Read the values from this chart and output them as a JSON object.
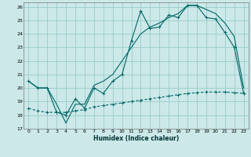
{
  "title": "",
  "xlabel": "Humidex (Indice chaleur)",
  "xlim": [
    -0.5,
    23.5
  ],
  "ylim": [
    17,
    26.3
  ],
  "yticks": [
    17,
    18,
    19,
    20,
    21,
    22,
    23,
    24,
    25,
    26
  ],
  "xticks": [
    0,
    1,
    2,
    3,
    4,
    5,
    6,
    7,
    8,
    9,
    10,
    11,
    12,
    13,
    14,
    15,
    16,
    17,
    18,
    19,
    20,
    21,
    22,
    23
  ],
  "bg_color": "#cce8e8",
  "grid_color": "#99cccc",
  "line_color": "#006666",
  "line1_x": [
    0,
    1,
    2,
    3,
    4,
    5,
    6,
    7,
    8,
    9,
    10,
    11,
    12,
    13,
    14,
    15,
    16,
    17,
    18,
    19,
    20,
    21,
    22,
    23
  ],
  "line1_y": [
    20.5,
    20.0,
    20.0,
    18.2,
    18.0,
    19.2,
    18.5,
    20.0,
    19.6,
    20.5,
    21.0,
    23.5,
    25.7,
    24.4,
    24.5,
    25.4,
    25.2,
    26.1,
    26.1,
    25.2,
    25.1,
    24.1,
    23.0,
    19.6
  ],
  "line2_x": [
    0,
    1,
    2,
    3,
    4,
    5,
    6,
    7,
    8,
    9,
    10,
    11,
    12,
    13,
    14,
    15,
    16,
    17,
    18,
    19,
    20,
    21,
    22,
    23
  ],
  "line2_y": [
    20.5,
    20.0,
    20.0,
    18.8,
    17.4,
    18.8,
    18.8,
    20.2,
    20.5,
    21.0,
    22.0,
    23.0,
    24.0,
    24.5,
    24.8,
    25.2,
    25.5,
    26.1,
    26.1,
    25.8,
    25.5,
    24.8,
    23.8,
    20.0
  ],
  "line3_x": [
    0,
    1,
    2,
    3,
    4,
    5,
    6,
    7,
    8,
    9,
    10,
    11,
    12,
    13,
    14,
    15,
    16,
    17,
    18,
    19,
    20,
    21,
    22,
    23
  ],
  "line3_y": [
    18.5,
    18.3,
    18.2,
    18.2,
    18.2,
    18.3,
    18.4,
    18.6,
    18.7,
    18.8,
    18.9,
    19.0,
    19.1,
    19.2,
    19.3,
    19.4,
    19.5,
    19.6,
    19.65,
    19.7,
    19.7,
    19.7,
    19.65,
    19.6
  ]
}
